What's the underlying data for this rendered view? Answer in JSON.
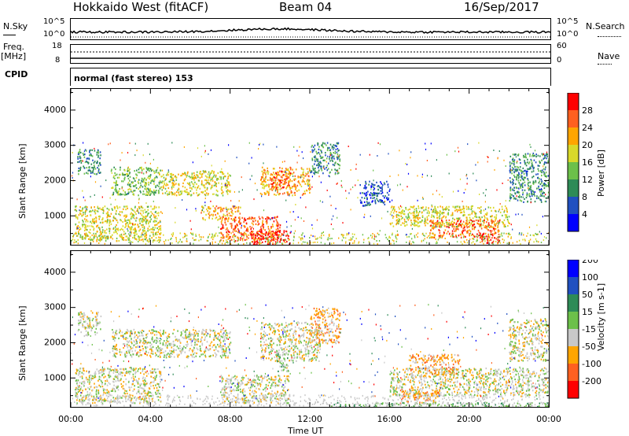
{
  "header": {
    "station": "Hokkaido West (fitACF)",
    "beam": "Beam 04",
    "date": "16/Sep/2017"
  },
  "aux": {
    "nsky_label": "N.Sky",
    "nsearch_label": "N.Search",
    "nsky_top": "10^5",
    "nsky_bottom": "10^0",
    "nsearch_top": "10^5",
    "nsearch_bottom": "10^0",
    "freq_label": "Freq.",
    "freq_unit": "[MHz]",
    "freq_top": "18",
    "freq_bottom": "8",
    "nave_label": "Nave",
    "nave_top": "60",
    "nave_bottom": "0",
    "cpid_label": "CPID",
    "cpid_value": "normal (fast stereo) 153"
  },
  "chart_data": [
    {
      "type": "heatmap",
      "name": "power",
      "ylabel": "Slant Range [km]",
      "xlabel": "",
      "xlim": [
        0,
        24
      ],
      "ylim": [
        180,
        4600
      ],
      "y_ticks": [
        "1000",
        "2000",
        "3000",
        "4000"
      ],
      "colorbar": {
        "label": "Power [dB]",
        "ticks": [
          "4",
          "8",
          "12",
          "16",
          "20",
          "24",
          "28"
        ],
        "colors": [
          "#0000ff",
          "#2050c0",
          "#2e8b57",
          "#6cc04a",
          "#d9d92a",
          "#ffa500",
          "#ff6020",
          "#ff0000"
        ]
      },
      "regions": [
        {
          "t": [
            0.2,
            4.5
          ],
          "r": [
            300,
            1300
          ],
          "level": 4
        },
        {
          "t": [
            0.3,
            1.5
          ],
          "r": [
            2200,
            2900
          ],
          "level": 2
        },
        {
          "t": [
            2.0,
            4.5
          ],
          "r": [
            1600,
            2400
          ],
          "level": 3
        },
        {
          "t": [
            4.5,
            8.0
          ],
          "r": [
            1600,
            2300
          ],
          "level": 4
        },
        {
          "t": [
            6.5,
            8.5
          ],
          "r": [
            900,
            1300
          ],
          "level": 5
        },
        {
          "t": [
            7.5,
            10.5
          ],
          "r": [
            300,
            1000
          ],
          "level": 6
        },
        {
          "t": [
            9.0,
            11.0
          ],
          "r": [
            200,
            600
          ],
          "level": 7
        },
        {
          "t": [
            9.5,
            12.0
          ],
          "r": [
            1600,
            2400
          ],
          "level": 5
        },
        {
          "t": [
            10.0,
            11.0
          ],
          "r": [
            1800,
            2300
          ],
          "level": 6
        },
        {
          "t": [
            12.0,
            13.5
          ],
          "r": [
            2200,
            3100
          ],
          "level": 2
        },
        {
          "t": [
            16.0,
            22.0
          ],
          "r": [
            700,
            1300
          ],
          "level": 4
        },
        {
          "t": [
            18.0,
            21.5
          ],
          "r": [
            400,
            900
          ],
          "level": 6
        },
        {
          "t": [
            20.5,
            21.5
          ],
          "r": [
            250,
            500
          ],
          "level": 7
        },
        {
          "t": [
            22.0,
            24.0
          ],
          "r": [
            1400,
            2800
          ],
          "level": 2
        },
        {
          "t": [
            14.5,
            16.0
          ],
          "r": [
            1300,
            2000
          ],
          "level": 1
        }
      ]
    },
    {
      "type": "heatmap",
      "name": "velocity",
      "ylabel": "Slant Range [km]",
      "xlabel": "Time UT",
      "xlim": [
        0,
        24
      ],
      "ylim": [
        180,
        4600
      ],
      "x_ticks": [
        "00:00",
        "04:00",
        "08:00",
        "12:00",
        "16:00",
        "20:00",
        "00:00"
      ],
      "y_ticks": [
        "1000",
        "2000",
        "3000",
        "4000"
      ],
      "colorbar": {
        "label": "Velocity [m s-1]",
        "ticks": [
          "200",
          "100",
          "50",
          "15",
          "-15",
          "-50",
          "-100",
          "-200"
        ],
        "colors": [
          "#0000ff",
          "#2050c0",
          "#2e8b57",
          "#6cc04a",
          "#c8c8c8",
          "#ffa500",
          "#ff6020",
          "#ff0000"
        ]
      },
      "regions": [
        {
          "t": [
            0.2,
            4.5
          ],
          "r": [
            300,
            1300
          ],
          "level": 4
        },
        {
          "t": [
            0.3,
            1.5
          ],
          "r": [
            2200,
            2900
          ],
          "level": 4
        },
        {
          "t": [
            2.0,
            8.0
          ],
          "r": [
            1600,
            2400
          ],
          "level": 4
        },
        {
          "t": [
            7.5,
            11.0
          ],
          "r": [
            300,
            1100
          ],
          "level": 4
        },
        {
          "t": [
            9.5,
            12.5
          ],
          "r": [
            1500,
            2600
          ],
          "level": 4
        },
        {
          "t": [
            12.0,
            13.5
          ],
          "r": [
            2000,
            3000
          ],
          "level": 5
        },
        {
          "t": [
            16.0,
            24.0
          ],
          "r": [
            500,
            1300
          ],
          "level": 4
        },
        {
          "t": [
            17.0,
            19.5
          ],
          "r": [
            1100,
            1700
          ],
          "level": 5
        },
        {
          "t": [
            16.5,
            18.5
          ],
          "r": [
            300,
            700
          ],
          "level": 5
        },
        {
          "t": [
            10.3,
            10.9
          ],
          "r": [
            1200,
            1700
          ],
          "level": 3
        },
        {
          "t": [
            13.0,
            24.0
          ],
          "r": [
            190,
            320
          ],
          "level": 3
        },
        {
          "t": [
            22.0,
            24.0
          ],
          "r": [
            1500,
            2700
          ],
          "level": 4
        }
      ]
    }
  ]
}
